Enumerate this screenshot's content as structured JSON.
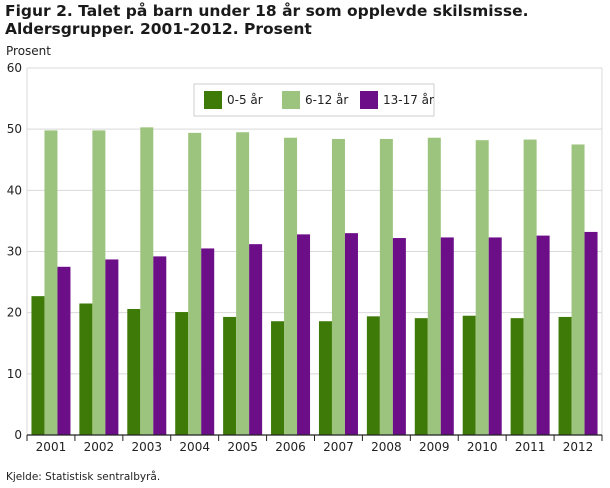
{
  "title": "Figur 2. Talet på barn under 18 år som opplevde skilsmisse. Aldersgrupper. 2001-2012. Prosent",
  "source": "Kjelde: Statistisk sentralbyrå.",
  "chart_data": {
    "type": "bar",
    "ylabel": "Prosent",
    "xlabel": "",
    "ylim": [
      0,
      60
    ],
    "yticks": [
      0,
      10,
      20,
      30,
      40,
      50,
      60
    ],
    "grid": true,
    "legend_position": "top-center",
    "categories": [
      "2001",
      "2002",
      "2003",
      "2004",
      "2005",
      "2006",
      "2007",
      "2008",
      "2009",
      "2010",
      "2011",
      "2012"
    ],
    "series": [
      {
        "name": "0-5 år",
        "color": "#3d7a07",
        "values": [
          22.7,
          21.5,
          20.6,
          20.1,
          19.3,
          18.6,
          18.6,
          19.4,
          19.1,
          19.5,
          19.1,
          19.3
        ]
      },
      {
        "name": "6-12 år",
        "color": "#9dc47e",
        "values": [
          49.8,
          49.8,
          50.3,
          49.4,
          49.5,
          48.6,
          48.4,
          48.4,
          48.6,
          48.2,
          48.3,
          47.5
        ]
      },
      {
        "name": "13-17 år",
        "color": "#6c0e87",
        "values": [
          27.5,
          28.7,
          29.2,
          30.5,
          31.2,
          32.8,
          33.0,
          32.2,
          32.3,
          32.3,
          32.6,
          33.2
        ]
      }
    ]
  }
}
